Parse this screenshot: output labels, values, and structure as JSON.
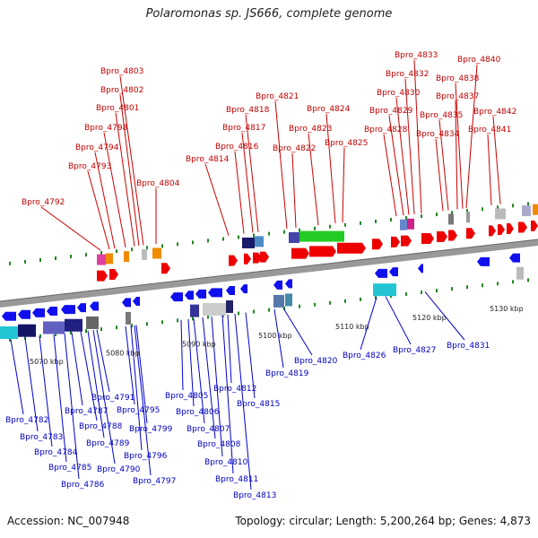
{
  "title": "Polaromonas sp. JS666, complete genome",
  "accession": "Accession: NC_007948",
  "topology": "Topology: circular; Length: 5,200,264 bp; Genes: 4,873",
  "colors": {
    "forward_strand": "#ee0000",
    "reverse_strand": "#1010ee",
    "forward_label": "#c00000",
    "reverse_label": "#0000c0",
    "backbone": "#999999",
    "tick_green": "#228822"
  },
  "kbp_ticks": [
    "5070 kbp",
    "5080 kbp",
    "5090 kbp",
    "5100 kbp",
    "5110 kbp",
    "5120 kbp",
    "5130 kbp"
  ],
  "forward_genes": [
    "Bpro_4792",
    "Bpro_4793",
    "Bpro_4794",
    "Bpro_4798",
    "Bpro_4801",
    "Bpro_4802",
    "Bpro_4803",
    "Bpro_4804",
    "Bpro_4814",
    "Bpro_4816",
    "Bpro_4817",
    "Bpro_4818",
    "Bpro_4821",
    "Bpro_4822",
    "Bpro_4823",
    "Bpro_4824",
    "Bpro_4825",
    "Bpro_4828",
    "Bpro_4829",
    "Bpro_4830",
    "Bpro_4832",
    "Bpro_4833",
    "Bpro_4834",
    "Bpro_4835",
    "Bpro_4837",
    "Bpro_4838",
    "Bpro_4840",
    "Bpro_4841",
    "Bpro_4842"
  ],
  "reverse_genes": [
    "Bpro_4782",
    "Bpro_4783",
    "Bpro_4784",
    "Bpro_4785",
    "Bpro_4786",
    "Bpro_4787",
    "Bpro_4788",
    "Bpro_4789",
    "Bpro_4790",
    "Bpro_4791",
    "Bpro_4795",
    "Bpro_4796",
    "Bpro_4797",
    "Bpro_4799",
    "Bpro_4805",
    "Bpro_4806",
    "Bpro_4807",
    "Bpro_4808",
    "Bpro_4810",
    "Bpro_4811",
    "Bpro_4812",
    "Bpro_4813",
    "Bpro_4815",
    "Bpro_4819",
    "Bpro_4820",
    "Bpro_4826",
    "Bpro_4827",
    "Bpro_4831"
  ]
}
